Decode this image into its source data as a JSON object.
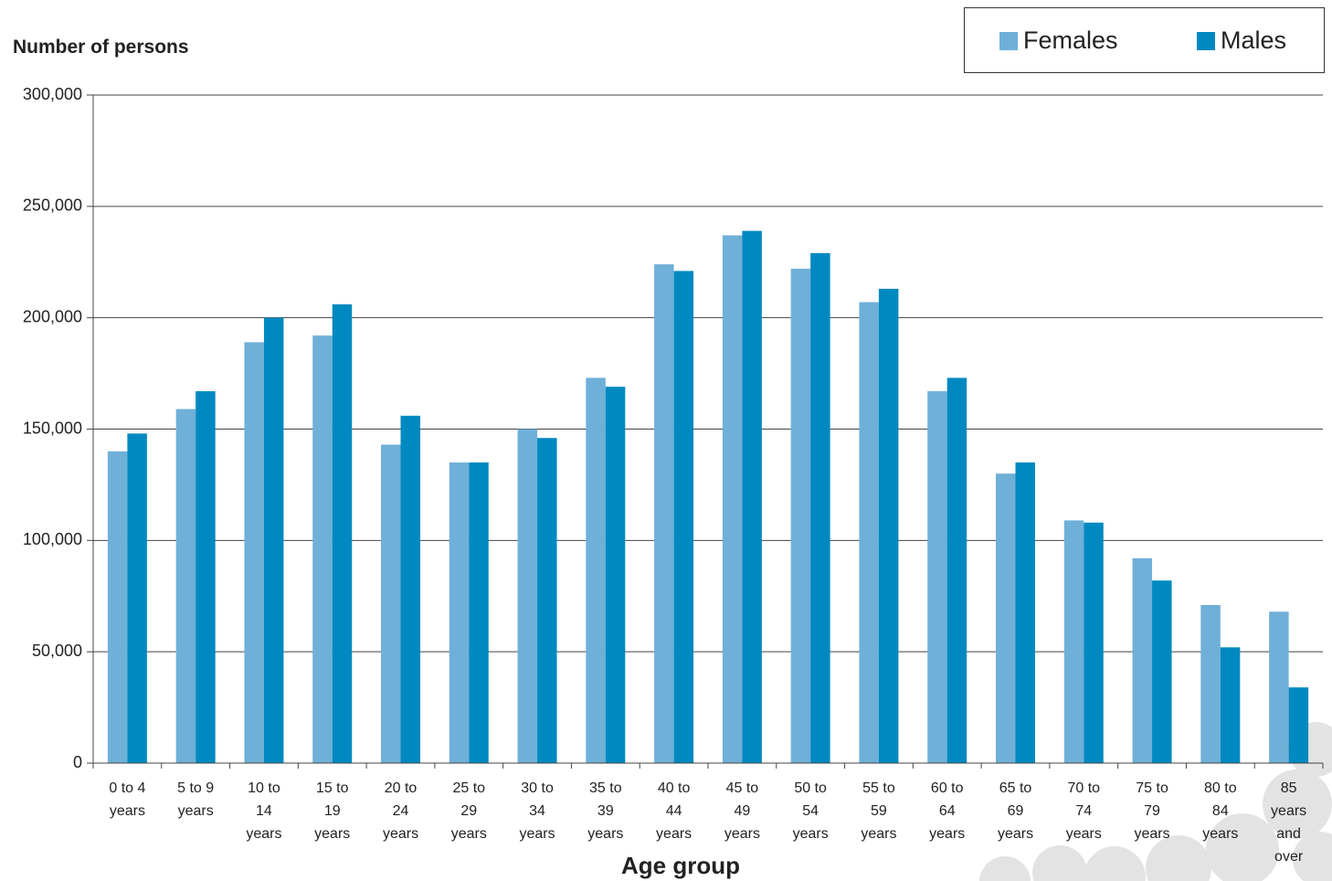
{
  "chart_data": {
    "type": "bar",
    "y_axis_title": "Number of persons",
    "x_axis_title": "Age group",
    "categories": [
      "0 to 4 years",
      "5 to 9 years",
      "10 to 14 years",
      "15 to 19 years",
      "20 to 24 years",
      "25 to 29 years",
      "30 to 34 years",
      "35 to 39 years",
      "40 to 44 years",
      "45 to 49 years",
      "50 to 54 years",
      "55 to 59 years",
      "60 to 64 years",
      "65 to 69 years",
      "70 to 74 years",
      "75 to 79 years",
      "80 to 84 years",
      "85 years and over"
    ],
    "series": [
      {
        "name": "Females",
        "color": "#6fb0d8",
        "values": [
          140000,
          159000,
          189000,
          192000,
          143000,
          135000,
          150000,
          173000,
          224000,
          237000,
          222000,
          207000,
          167000,
          130000,
          109000,
          92000,
          71000,
          68000
        ]
      },
      {
        "name": "Males",
        "color": "#0089c0",
        "values": [
          148000,
          167000,
          200000,
          206000,
          156000,
          135000,
          146000,
          169000,
          221000,
          239000,
          229000,
          213000,
          173000,
          135000,
          108000,
          82000,
          52000,
          34000
        ]
      }
    ],
    "ylim": [
      0,
      300000
    ],
    "yticks": [
      0,
      {
        "value": 50000,
        "label": "50,000"
      },
      {
        "value": 100000,
        "label": "100,000"
      },
      {
        "value": 150000,
        "label": "150,000"
      },
      {
        "value": 200000,
        "label": "200,000"
      },
      {
        "value": 250000,
        "label": "250,000"
      },
      {
        "value": 300000,
        "label": "300,000"
      }
    ],
    "grid": true
  }
}
